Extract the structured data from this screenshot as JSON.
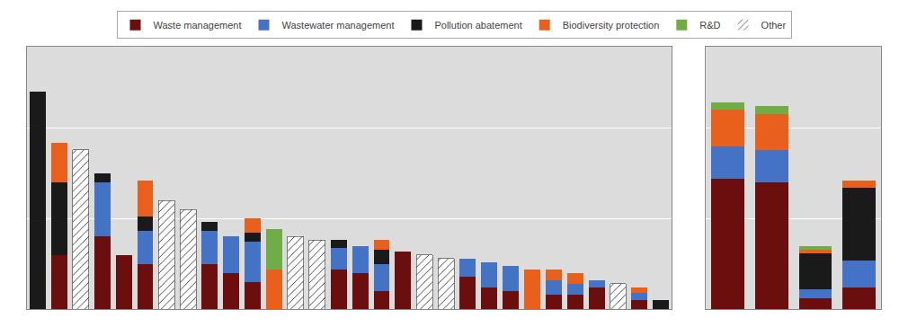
{
  "chart_data": [
    {
      "type": "bar",
      "stacked": true,
      "grid": true,
      "tick_labels": false,
      "legend": "top",
      "categories": [
        null,
        null,
        null,
        null,
        null,
        null,
        null,
        null,
        null,
        null,
        null,
        null,
        null,
        null,
        null,
        null,
        null,
        null,
        null,
        null,
        null,
        null,
        null,
        null,
        null,
        null,
        null,
        null,
        null,
        null
      ],
      "ylim": [
        0,
        1.45
      ],
      "yticks": [
        0,
        0.5,
        1
      ],
      "series": [
        {
          "name": "Waste management",
          "color": "#6B0E0E",
          "values": [
            0.0,
            0.3,
            0.0,
            0.4,
            0.3,
            0.25,
            0.0,
            0.0,
            0.25,
            0.2,
            0.15,
            0.0,
            0.0,
            0.0,
            0.22,
            0.2,
            0.1,
            0.32,
            0.0,
            0.0,
            0.18,
            0.12,
            0.1,
            0.0,
            0.08,
            0.08,
            0.12,
            0.0,
            0.05,
            0.0
          ]
        },
        {
          "name": "Wastewater management",
          "color": "#4472C4",
          "values": [
            0.0,
            0.0,
            0.0,
            0.3,
            0.0,
            0.18,
            0.0,
            0.0,
            0.18,
            0.2,
            0.22,
            0.0,
            0.0,
            0.0,
            0.12,
            0.15,
            0.15,
            0.0,
            0.0,
            0.0,
            0.1,
            0.14,
            0.14,
            0.0,
            0.08,
            0.06,
            0.04,
            0.0,
            0.04,
            0.0
          ]
        },
        {
          "name": "Pollution abatement",
          "color": "#1A1A1A",
          "values": [
            1.2,
            0.4,
            0.0,
            0.05,
            0.0,
            0.08,
            0.0,
            0.0,
            0.05,
            0.0,
            0.05,
            0.0,
            0.0,
            0.0,
            0.04,
            0.0,
            0.08,
            0.0,
            0.0,
            0.0,
            0.0,
            0.0,
            0.0,
            0.0,
            0.0,
            0.0,
            0.0,
            0.0,
            0.0,
            0.05
          ]
        },
        {
          "name": "Biodiversity protection",
          "color": "#E8601C",
          "values": [
            0.0,
            0.22,
            0.0,
            0.0,
            0.0,
            0.2,
            0.0,
            0.0,
            0.0,
            0.0,
            0.08,
            0.22,
            0.0,
            0.0,
            0.0,
            0.0,
            0.05,
            0.0,
            0.0,
            0.0,
            0.0,
            0.0,
            0.0,
            0.22,
            0.06,
            0.06,
            0.0,
            0.0,
            0.03,
            0.0
          ]
        },
        {
          "name": "R&D",
          "color": "#70AD47",
          "values": [
            0.0,
            0.0,
            0.0,
            0.0,
            0.0,
            0.0,
            0.0,
            0.0,
            0.0,
            0.0,
            0.0,
            0.22,
            0.0,
            0.0,
            0.0,
            0.0,
            0.0,
            0.0,
            0.0,
            0.0,
            0.0,
            0.0,
            0.0,
            0.0,
            0.0,
            0.0,
            0.0,
            0.0,
            0.0,
            0.0
          ]
        },
        {
          "name": "Other",
          "color": "#FFFFFF",
          "values": [
            0.0,
            0.0,
            0.88,
            0.0,
            0.0,
            0.0,
            0.6,
            0.55,
            0.0,
            0.0,
            0.0,
            0.0,
            0.4,
            0.38,
            0.0,
            0.0,
            0.0,
            0.0,
            0.3,
            0.28,
            0.0,
            0.0,
            0.0,
            0.0,
            0.0,
            0.0,
            0.0,
            0.14,
            0.0,
            0.0
          ]
        }
      ]
    },
    {
      "type": "bar",
      "stacked": true,
      "grid": true,
      "tick_labels": false,
      "categories": [
        null,
        null,
        null,
        null
      ],
      "ylim": [
        0,
        1.45
      ],
      "yticks": [
        0,
        0.5,
        1
      ],
      "series": [
        {
          "name": "Waste management",
          "color": "#6B0E0E",
          "values": [
            0.72,
            0.7,
            0.06,
            0.12
          ]
        },
        {
          "name": "Wastewater management",
          "color": "#4472C4",
          "values": [
            0.18,
            0.18,
            0.05,
            0.15
          ]
        },
        {
          "name": "Pollution abatement",
          "color": "#1A1A1A",
          "values": [
            0.0,
            0.0,
            0.2,
            0.4
          ]
        },
        {
          "name": "Biodiversity protection",
          "color": "#E8601C",
          "values": [
            0.2,
            0.2,
            0.02,
            0.04
          ]
        },
        {
          "name": "R&D",
          "color": "#70AD47",
          "values": [
            0.04,
            0.04,
            0.02,
            0.0
          ]
        },
        {
          "name": "Other",
          "color": "#FFFFFF",
          "values": [
            0.0,
            0.0,
            0.0,
            0.0
          ]
        }
      ]
    }
  ]
}
